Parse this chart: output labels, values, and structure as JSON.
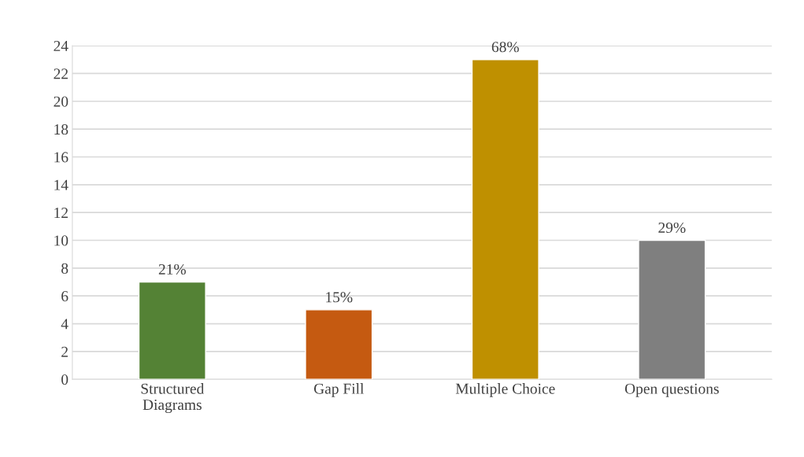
{
  "chart_data": {
    "type": "bar",
    "categories": [
      "Structured\nDiagrams",
      "Gap Fill",
      "Multiple Choice",
      "Open questions"
    ],
    "values": [
      7,
      5,
      23,
      10
    ],
    "colors": [
      "#548235",
      "#c55a11",
      "#bf9000",
      "#7f7f7f"
    ],
    "annotations": [
      {
        "text": "21%",
        "x": "Structured\nDiagrams",
        "y": 7
      },
      {
        "text": "15%",
        "x": "Gap Fill",
        "y": 5
      },
      {
        "text": "68%",
        "x": "Multiple Choice",
        "y": 23
      },
      {
        "text": "29%",
        "x": "Open questions",
        "y": 10
      }
    ],
    "ylim": [
      0,
      24
    ],
    "yticks": [
      0,
      2,
      4,
      6,
      8,
      10,
      12,
      14,
      16,
      18,
      20,
      22,
      24
    ],
    "grid": "y"
  }
}
